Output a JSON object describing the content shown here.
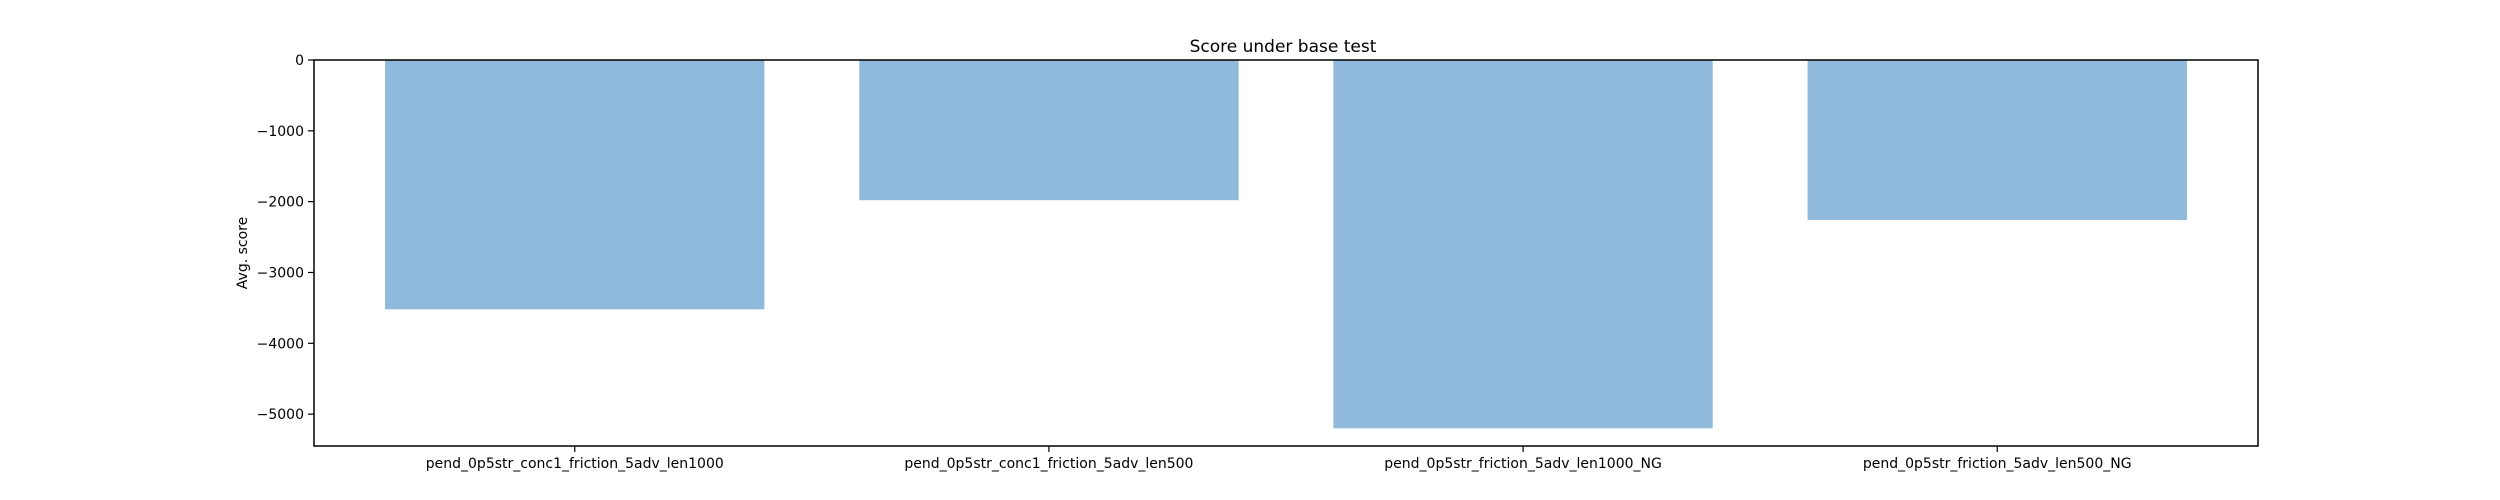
{
  "chart_data": {
    "type": "bar",
    "title": "Score under base test",
    "xlabel": "",
    "ylabel": "Avg. score",
    "categories": [
      "pend_0p5str_conc1_friction_5adv_len1000",
      "pend_0p5str_conc1_friction_5adv_len500",
      "pend_0p5str_friction_5adv_len1000_NG",
      "pend_0p5str_friction_5adv_len500_NG"
    ],
    "values": [
      -3520,
      -1980,
      -5200,
      -2260
    ],
    "ylim": [
      -5450,
      0
    ],
    "yticks": [
      0,
      -1000,
      -2000,
      -3000,
      -4000,
      -5000
    ],
    "ytick_labels": [
      "0",
      "−1000",
      "−2000",
      "−3000",
      "−4000",
      "−5000"
    ],
    "bar_color": "#8fbadb",
    "grid": false,
    "legend": "none"
  }
}
